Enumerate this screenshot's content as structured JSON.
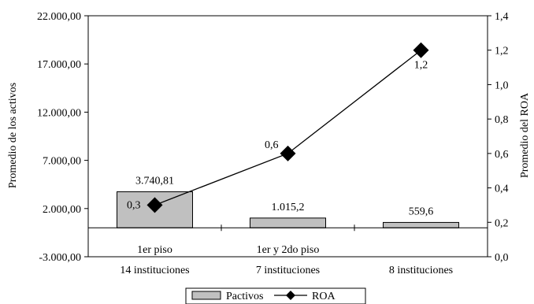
{
  "chart_data": {
    "type": "bar",
    "categories": [
      [
        "1er piso",
        "14 instituciones"
      ],
      [
        "1er y 2do piso",
        "7  instituciones"
      ],
      [
        "",
        "8  instituciones"
      ]
    ],
    "ylabel_left": "Promedio de los activos",
    "ylabel_right": "Promedio del ROA",
    "left_axis": {
      "ylim": [
        -3000,
        22000
      ],
      "ticks": [
        -3000,
        2000,
        7000,
        12000,
        17000,
        22000
      ],
      "tick_labels": [
        "-3.000,00",
        "2.000,00",
        "7.000,00",
        "12.000,00",
        "17.000,00",
        "22.000,00"
      ]
    },
    "right_axis": {
      "ylim": [
        0.0,
        1.4
      ],
      "ticks": [
        0.0,
        0.2,
        0.4,
        0.6,
        0.8,
        1.0,
        1.2,
        1.4
      ],
      "tick_labels": [
        "0,0",
        "0,2",
        "0,4",
        "0,6",
        "0,8",
        "1,0",
        "1,2",
        "1,4"
      ]
    },
    "series": [
      {
        "name": "Pactivos",
        "kind": "bar",
        "axis": "left",
        "color": "#c0c0c0",
        "values": [
          3740.81,
          1015.2,
          559.6
        ],
        "labels": [
          "3.740,81",
          "1.015,2",
          "559,6"
        ]
      },
      {
        "name": "ROA",
        "kind": "line",
        "axis": "right",
        "color": "#000000",
        "values": [
          0.3,
          0.6,
          1.2
        ],
        "labels": [
          "0,3",
          "0,6",
          "1,2"
        ]
      }
    ],
    "grid": false,
    "legend": "bottom"
  }
}
